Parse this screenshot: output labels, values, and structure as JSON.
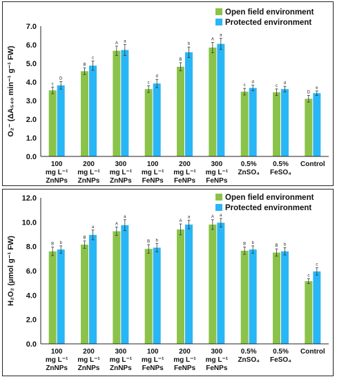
{
  "colors": {
    "open": "#8bc34a",
    "protected": "#29b6f6",
    "axis": "#222222"
  },
  "legend": {
    "open_label": "Open field environment",
    "protected_label": "Protected environment"
  },
  "chart_data": [
    {
      "type": "bar",
      "categories": [
        [
          "100",
          "mg L⁻¹",
          "ZnNPs"
        ],
        [
          "200",
          "mg L⁻¹",
          "ZnNPs"
        ],
        [
          "300",
          "mg L⁻¹",
          "ZnNPs"
        ],
        [
          "100",
          "mg L⁻¹",
          "FeNPs"
        ],
        [
          "200",
          "mg L⁻¹",
          "FeNPs"
        ],
        [
          "300",
          "mg L⁻¹",
          "FeNPs"
        ],
        [
          "0.5%",
          "ZnSO₄"
        ],
        [
          "0.5%",
          "FeSO₄"
        ],
        [
          "Control"
        ]
      ],
      "series": [
        {
          "name": "Open field environment",
          "values": [
            3.55,
            4.58,
            5.68,
            3.62,
            4.82,
            5.85,
            3.48,
            3.45,
            3.1
          ],
          "errors": [
            0.18,
            0.18,
            0.25,
            0.18,
            0.22,
            0.28,
            0.18,
            0.18,
            0.18
          ],
          "letters": [
            "c",
            "B",
            "A",
            "c",
            "B",
            "A",
            "c",
            "c",
            "D"
          ]
        },
        {
          "name": "Protected environment",
          "values": [
            3.82,
            4.88,
            5.72,
            3.92,
            5.6,
            6.05,
            3.68,
            3.62,
            3.4
          ],
          "errors": [
            0.2,
            0.25,
            0.3,
            0.22,
            0.28,
            0.3,
            0.15,
            0.15,
            0.12
          ],
          "letters": [
            "D",
            "c",
            "a",
            "d",
            "b",
            "a",
            "d",
            "d",
            "e"
          ]
        }
      ],
      "ylabel": "O₂⁻ (ΔA₅₄₀ min⁻¹ g⁻¹ FW)",
      "ylim": [
        0,
        7
      ],
      "yticks": [
        "0.0",
        "1.0",
        "2.0",
        "3.0",
        "4.0",
        "5.0",
        "6.0",
        "7.0"
      ],
      "legend_position": "top-right"
    },
    {
      "type": "bar",
      "categories": [
        [
          "100",
          "mg L⁻¹",
          "ZnNPs"
        ],
        [
          "200",
          "mg L⁻¹",
          "ZnNPs"
        ],
        [
          "300",
          "mg L⁻¹",
          "ZnNPs"
        ],
        [
          "100",
          "mg L⁻¹",
          "FeNPs"
        ],
        [
          "200",
          "mg L⁻¹",
          "FeNPs"
        ],
        [
          "300",
          "mg L⁻¹",
          "FeNPs"
        ],
        [
          "0.5%",
          "ZnSO₄"
        ],
        [
          "0.5%",
          "FeSO₄"
        ],
        [
          "Control"
        ]
      ],
      "series": [
        {
          "name": "Open field environment",
          "values": [
            7.6,
            8.15,
            9.25,
            7.8,
            9.4,
            9.8,
            7.65,
            7.5,
            5.15
          ],
          "errors": [
            0.35,
            0.3,
            0.35,
            0.35,
            0.45,
            0.4,
            0.3,
            0.3,
            0.2
          ],
          "letters": [
            "B",
            "B",
            "A",
            "B",
            "A",
            "A",
            "B",
            "B",
            "c"
          ]
        },
        {
          "name": "Protected environment",
          "values": [
            7.75,
            8.95,
            9.75,
            7.9,
            9.8,
            9.95,
            7.75,
            7.6,
            5.95
          ],
          "errors": [
            0.3,
            0.4,
            0.45,
            0.35,
            0.35,
            0.35,
            0.3,
            0.3,
            0.3
          ],
          "letters": [
            "b",
            "a",
            "a",
            "b",
            "a",
            "a",
            "b",
            "b",
            "c"
          ]
        }
      ],
      "ylabel": "H₂O₂ (µmol g⁻¹ FW)",
      "ylim": [
        0,
        12
      ],
      "yticks": [
        "0.0",
        "2.0",
        "4.0",
        "6.0",
        "8.0",
        "10.0",
        "12.0"
      ],
      "legend_position": "top-right"
    }
  ]
}
